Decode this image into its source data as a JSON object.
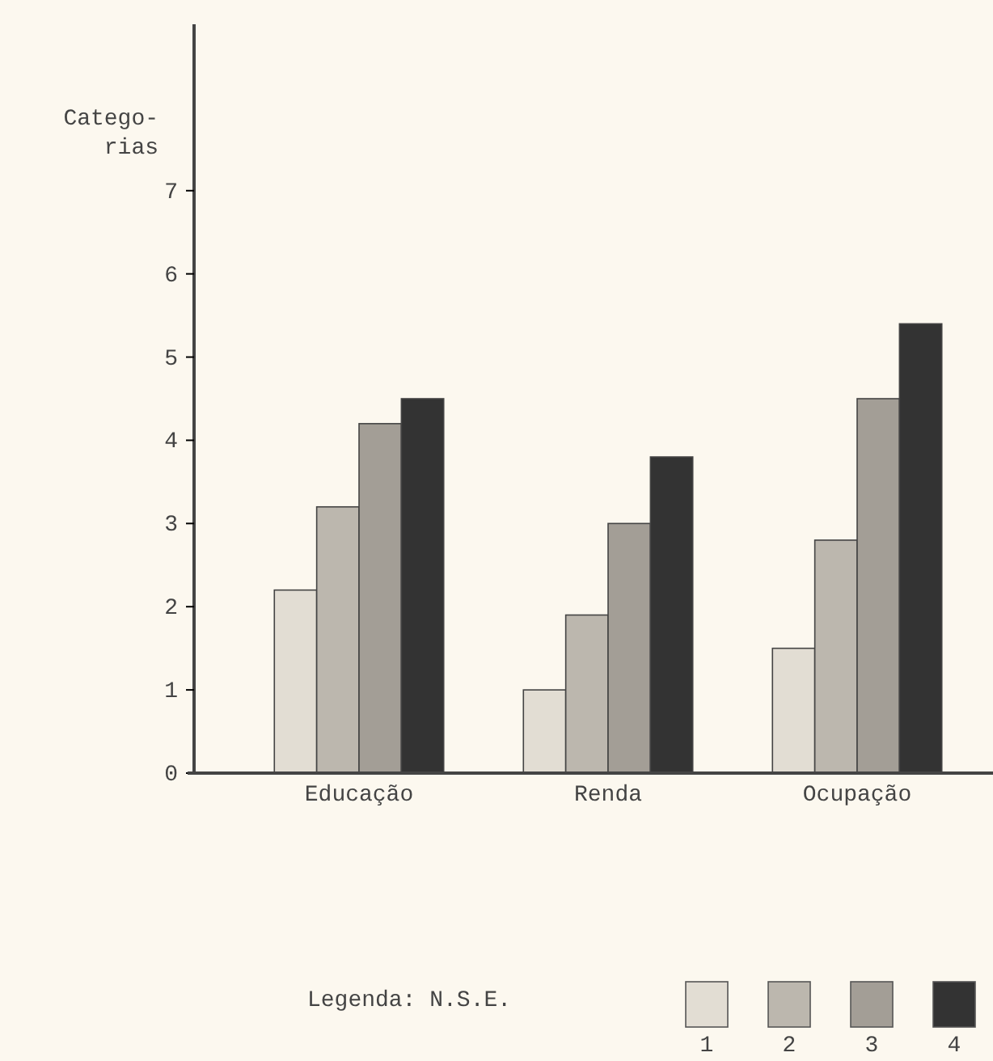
{
  "chart_data": {
    "type": "bar",
    "ylabel": "Catego-\nrias",
    "categories": [
      "Educação",
      "Renda",
      "Ocupação"
    ],
    "series": [
      {
        "name": "1",
        "color": "#e2ddd3",
        "values": [
          2.2,
          1.0,
          1.5
        ]
      },
      {
        "name": "2",
        "color": "#bcb7ae",
        "values": [
          3.2,
          1.9,
          2.8
        ]
      },
      {
        "name": "3",
        "color": "#a39e96",
        "values": [
          4.2,
          3.0,
          4.5
        ]
      },
      {
        "name": "4",
        "color": "#333333",
        "values": [
          4.5,
          3.8,
          5.4
        ]
      }
    ],
    "legend_title": "Legenda: N.S.E.",
    "legend": "bottom",
    "ylim": [
      0,
      9
    ],
    "yticks": [
      0,
      1,
      2,
      3,
      4,
      5,
      6,
      7
    ],
    "grid": false
  }
}
